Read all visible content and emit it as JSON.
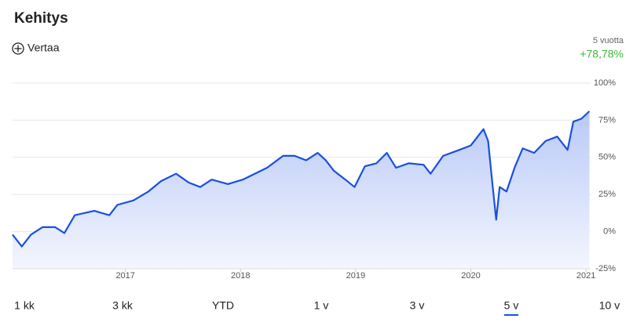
{
  "header": {
    "title": "Kehitys",
    "compare": "Vertaa",
    "period": "5 vuotta",
    "change": "+78,78%"
  },
  "ranges": [
    "1 kk",
    "3 kk",
    "YTD",
    "1 v",
    "3 v",
    "5 v",
    "10 v"
  ],
  "selected_range": 5,
  "chart_data": {
    "type": "line",
    "x": [
      2016.02,
      2016.1,
      2016.18,
      2016.28,
      2016.39,
      2016.47,
      2016.56,
      2016.73,
      2016.86,
      2016.93,
      2017.07,
      2017.2,
      2017.31,
      2017.44,
      2017.55,
      2017.65,
      2017.75,
      2017.89,
      2018.02,
      2018.23,
      2018.37,
      2018.47,
      2018.57,
      2018.67,
      2018.74,
      2018.81,
      2018.91,
      2018.99,
      2019.08,
      2019.18,
      2019.27,
      2019.35,
      2019.46,
      2019.59,
      2019.65,
      2019.76,
      2019.9,
      2020.0,
      2020.11,
      2020.15,
      2020.19,
      2020.22,
      2020.25,
      2020.31,
      2020.38,
      2020.45,
      2020.55,
      2020.65,
      2020.75,
      2020.84,
      2020.89,
      2020.96,
      2021.03
    ],
    "series": [
      {
        "color": "#1a4fe0",
        "values": [
          -2,
          -10,
          -2,
          3,
          3,
          -1,
          11,
          14,
          11,
          18,
          21,
          27,
          34,
          39,
          33,
          30,
          35,
          32,
          35,
          43,
          51,
          51,
          48,
          53,
          48,
          41,
          35,
          30,
          44,
          46,
          53,
          43,
          46,
          45,
          39,
          51,
          55,
          58,
          69,
          61,
          30,
          8,
          30,
          27,
          43,
          56,
          53,
          61,
          64,
          55,
          74,
          76,
          81
        ]
      }
    ],
    "xlim": [
      2016.02,
      2021.04
    ],
    "xticks": [
      2017,
      2018,
      2019,
      2020,
      2021
    ],
    "ylim": [
      -25,
      100
    ],
    "yticks": [
      {
        "value": -25,
        "label": "-25%"
      },
      {
        "value": 0,
        "label": "0%"
      },
      {
        "value": 25,
        "label": "25%"
      },
      {
        "value": 50,
        "label": "50%"
      },
      {
        "value": 75,
        "label": "75%"
      },
      {
        "value": 100,
        "label": "100%"
      }
    ],
    "grid": true
  }
}
